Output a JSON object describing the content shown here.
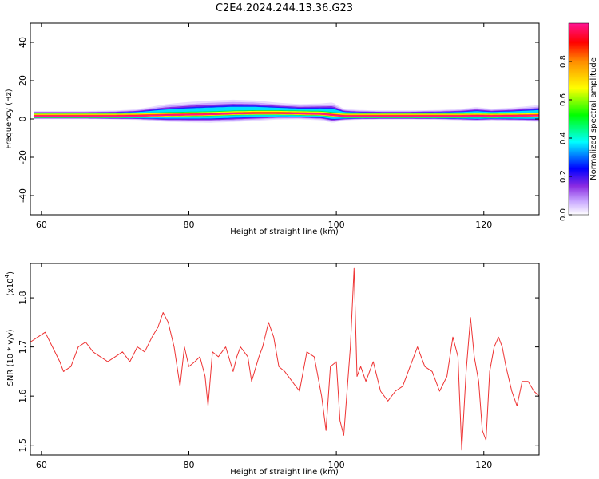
{
  "title": "C2E4.2024.244.13.36.G23",
  "colors": {
    "snr_line": "#ee3333",
    "frame": "#000000"
  },
  "chart_data": [
    {
      "type": "heatmap",
      "xlabel": "Height of straight line (km)",
      "ylabel": "Frequency (Hz)",
      "xlim": [
        58.5,
        127.5
      ],
      "ylim": [
        -50,
        50
      ],
      "xticks": [
        60,
        80,
        100,
        120
      ],
      "yticks": [
        40,
        20,
        0,
        -20,
        -40
      ],
      "colorbar": {
        "label": "Normalized spectral amplitude",
        "range": [
          0,
          1
        ],
        "ticks": [
          "0.0",
          "0.2",
          "0.4",
          "0.6",
          "0.8"
        ]
      },
      "profile": {
        "height_km": [
          59,
          62,
          66,
          70,
          73,
          75,
          77,
          80,
          83,
          86,
          89,
          92,
          95,
          98,
          99.5,
          101,
          103,
          106,
          110,
          114,
          117,
          119,
          121,
          124,
          127.5
        ],
        "center_hz": [
          1.5,
          1.5,
          1.5,
          1.5,
          1.6,
          1.8,
          2.0,
          2.2,
          2.4,
          2.8,
          3.0,
          3.0,
          2.8,
          2.6,
          2.0,
          1.5,
          1.5,
          1.5,
          1.5,
          1.5,
          1.5,
          1.6,
          1.5,
          1.6,
          1.8
        ],
        "spread_hz": [
          0.6,
          0.6,
          0.6,
          0.7,
          0.9,
          1.3,
          1.7,
          2.0,
          2.2,
          2.2,
          2.0,
          1.6,
          1.4,
          1.6,
          2.0,
          1.0,
          0.8,
          0.7,
          0.7,
          0.8,
          1.0,
          1.3,
          1.0,
          1.2,
          1.6
        ]
      }
    },
    {
      "type": "line",
      "xlabel": "Height of straight line (km)",
      "ylabel": "SNR (10 * v/v)",
      "yscale_label": "(x10",
      "yscale_exp": "4",
      "xlim": [
        58.5,
        127.5
      ],
      "ylim": [
        1.48,
        1.87
      ],
      "xticks": [
        60,
        80,
        100,
        120
      ],
      "yticks": [
        1.5,
        1.6,
        1.7,
        1.8
      ],
      "x": [
        58.5,
        59.5,
        60.5,
        61.5,
        62.5,
        63.0,
        64.0,
        65.0,
        66.0,
        67.0,
        68.0,
        69.0,
        70.0,
        71.0,
        72.0,
        73.0,
        74.0,
        75.0,
        75.8,
        76.5,
        77.2,
        78.0,
        78.8,
        79.4,
        80.0,
        80.8,
        81.5,
        82.2,
        82.6,
        83.2,
        84.0,
        85.0,
        86.0,
        86.5,
        87.0,
        88.0,
        88.5,
        89.5,
        90.0,
        90.8,
        91.5,
        92.2,
        93.0,
        94.0,
        95.0,
        96.0,
        97.0,
        98.0,
        98.6,
        99.2,
        100.0,
        100.5,
        101.0,
        101.5,
        101.9,
        102.4,
        102.8,
        103.3,
        104.0,
        105.0,
        106.0,
        107.0,
        108.0,
        109.0,
        110.0,
        111.0,
        112.0,
        113.0,
        114.0,
        115.0,
        115.8,
        116.5,
        117.0,
        117.6,
        118.2,
        118.7,
        119.3,
        119.8,
        120.3,
        120.8,
        121.4,
        122.0,
        122.5,
        123.0,
        123.8,
        124.5,
        125.2,
        126.0,
        126.8,
        127.5
      ],
      "y": [
        1.71,
        1.72,
        1.73,
        1.7,
        1.67,
        1.65,
        1.66,
        1.7,
        1.71,
        1.69,
        1.68,
        1.67,
        1.68,
        1.69,
        1.67,
        1.7,
        1.69,
        1.72,
        1.74,
        1.77,
        1.75,
        1.7,
        1.62,
        1.7,
        1.66,
        1.67,
        1.68,
        1.64,
        1.58,
        1.69,
        1.68,
        1.7,
        1.65,
        1.68,
        1.7,
        1.68,
        1.63,
        1.68,
        1.7,
        1.75,
        1.72,
        1.66,
        1.65,
        1.63,
        1.61,
        1.69,
        1.68,
        1.6,
        1.53,
        1.66,
        1.67,
        1.55,
        1.52,
        1.62,
        1.7,
        1.86,
        1.64,
        1.66,
        1.63,
        1.67,
        1.61,
        1.59,
        1.61,
        1.62,
        1.66,
        1.7,
        1.66,
        1.65,
        1.61,
        1.64,
        1.72,
        1.68,
        1.49,
        1.65,
        1.76,
        1.68,
        1.63,
        1.53,
        1.51,
        1.65,
        1.7,
        1.72,
        1.7,
        1.66,
        1.61,
        1.58,
        1.63,
        1.63,
        1.61,
        1.6
      ]
    }
  ]
}
